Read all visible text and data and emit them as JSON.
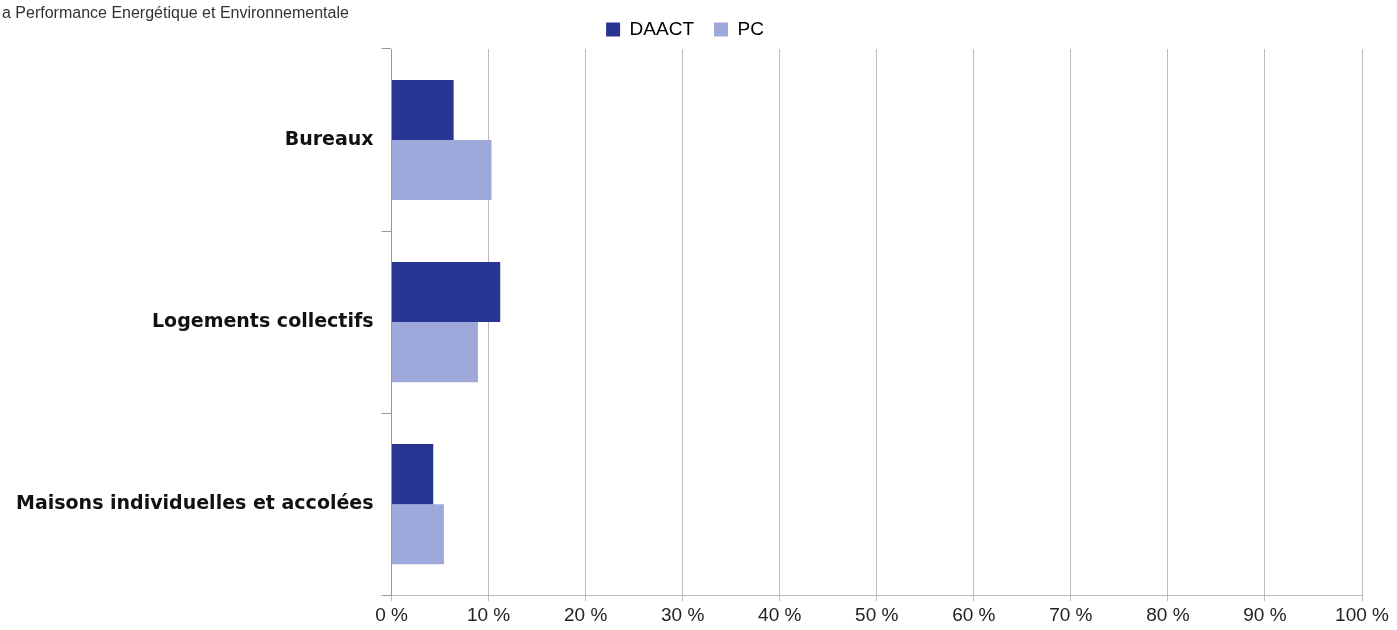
{
  "chart_data": {
    "type": "bar",
    "orientation": "horizontal",
    "title": "a Performance Energétique et Environnementale",
    "categories": [
      "Bureaux",
      "Logements collectifs",
      "Maisons individuelles et accolées"
    ],
    "series": [
      {
        "name": "DAACT",
        "color": "#283593",
        "values": [
          6.4,
          11.2,
          4.3
        ]
      },
      {
        "name": "PC",
        "color": "#9fa8da",
        "values": [
          10.3,
          8.9,
          5.4
        ]
      }
    ],
    "xlim": [
      0,
      100
    ],
    "xticks": [
      {
        "value": 0,
        "label": "0 %"
      },
      {
        "value": 10,
        "label": "10 %"
      },
      {
        "value": 20,
        "label": "20 %"
      },
      {
        "value": 30,
        "label": "30 %"
      },
      {
        "value": 40,
        "label": "40 %"
      },
      {
        "value": 50,
        "label": "50 %"
      },
      {
        "value": 60,
        "label": "60 %"
      },
      {
        "value": 70,
        "label": "70 %"
      },
      {
        "value": 80,
        "label": "80 %"
      },
      {
        "value": 90,
        "label": "90 %"
      },
      {
        "value": 100,
        "label": "100 %"
      }
    ],
    "grid": "x",
    "legend": "top"
  }
}
